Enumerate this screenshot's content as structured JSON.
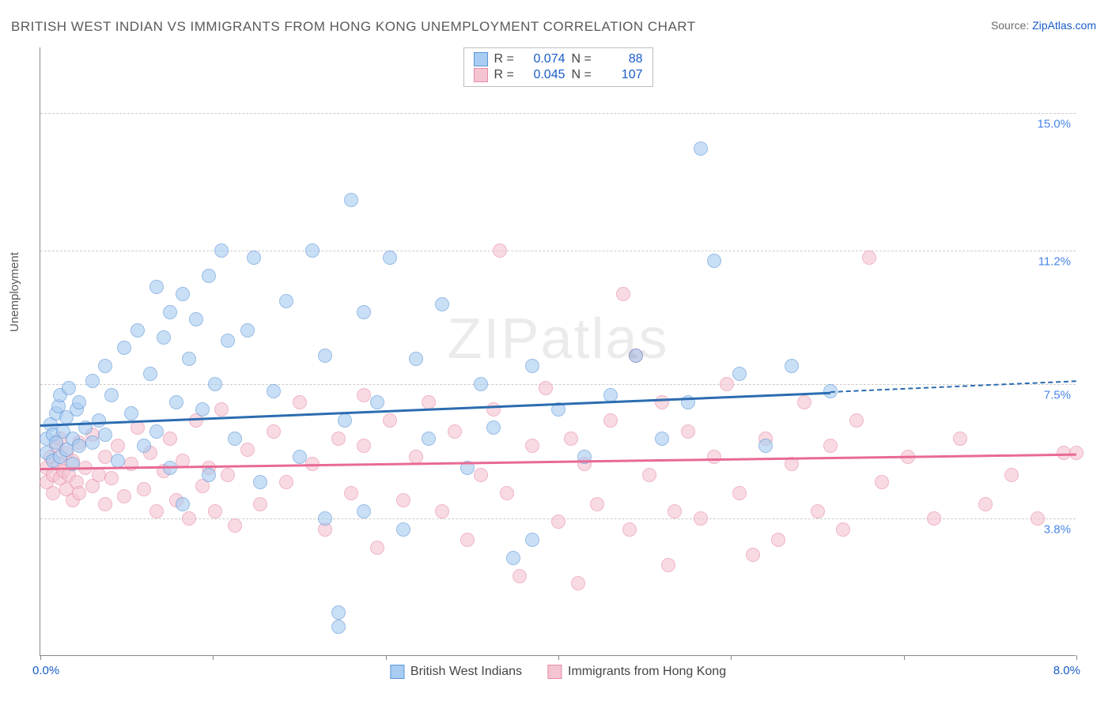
{
  "title": "BRITISH WEST INDIAN VS IMMIGRANTS FROM HONG KONG UNEMPLOYMENT CORRELATION CHART",
  "source_prefix": "Source: ",
  "source_name": "ZipAtlas.com",
  "y_axis_label": "Unemployment",
  "watermark": "ZIPatlas",
  "chart": {
    "type": "scatter",
    "xlim": [
      0.0,
      8.0
    ],
    "ylim": [
      0.0,
      16.8
    ],
    "x_ticks_minor": [
      0.0,
      1.33,
      2.67,
      4.0,
      5.33,
      6.67,
      8.0
    ],
    "y_gridlines": [
      3.8,
      7.5,
      11.2,
      15.0
    ],
    "y_tick_labels": [
      "3.8%",
      "7.5%",
      "11.2%",
      "15.0%"
    ],
    "x_tick_left": "0.0%",
    "x_tick_right": "8.0%",
    "background_color": "#ffffff",
    "grid_color": "#cccccc",
    "axis_color": "#888888",
    "marker_radius": 9,
    "marker_opacity": 0.62,
    "series": [
      {
        "name": "British West Indians",
        "fill": "#a9cdf2",
        "stroke": "#5a94d6",
        "trend_color": "#2b6cb0",
        "R": "0.074",
        "N": "88",
        "trend": {
          "x1": 0.0,
          "y1": 6.4,
          "x2": 6.1,
          "y2": 7.3,
          "dash_to_x": 8.0,
          "dash_to_y": 7.6
        },
        "points": [
          [
            0.05,
            5.6
          ],
          [
            0.05,
            6.0
          ],
          [
            0.08,
            6.4
          ],
          [
            0.1,
            6.1
          ],
          [
            0.1,
            5.4
          ],
          [
            0.12,
            6.7
          ],
          [
            0.12,
            5.9
          ],
          [
            0.14,
            6.9
          ],
          [
            0.15,
            5.5
          ],
          [
            0.15,
            7.2
          ],
          [
            0.18,
            6.2
          ],
          [
            0.2,
            6.6
          ],
          [
            0.2,
            5.7
          ],
          [
            0.22,
            7.4
          ],
          [
            0.25,
            6.0
          ],
          [
            0.25,
            5.3
          ],
          [
            0.28,
            6.8
          ],
          [
            0.3,
            7.0
          ],
          [
            0.3,
            5.8
          ],
          [
            0.35,
            6.3
          ],
          [
            0.4,
            7.6
          ],
          [
            0.4,
            5.9
          ],
          [
            0.45,
            6.5
          ],
          [
            0.5,
            8.0
          ],
          [
            0.5,
            6.1
          ],
          [
            0.55,
            7.2
          ],
          [
            0.6,
            5.4
          ],
          [
            0.65,
            8.5
          ],
          [
            0.7,
            6.7
          ],
          [
            0.75,
            9.0
          ],
          [
            0.8,
            5.8
          ],
          [
            0.85,
            7.8
          ],
          [
            0.9,
            10.2
          ],
          [
            0.9,
            6.2
          ],
          [
            0.95,
            8.8
          ],
          [
            1.0,
            9.5
          ],
          [
            1.0,
            5.2
          ],
          [
            1.05,
            7.0
          ],
          [
            1.1,
            10.0
          ],
          [
            1.1,
            4.2
          ],
          [
            1.15,
            8.2
          ],
          [
            1.2,
            9.3
          ],
          [
            1.25,
            6.8
          ],
          [
            1.3,
            10.5
          ],
          [
            1.3,
            5.0
          ],
          [
            1.35,
            7.5
          ],
          [
            1.4,
            11.2
          ],
          [
            1.45,
            8.7
          ],
          [
            1.5,
            6.0
          ],
          [
            1.6,
            9.0
          ],
          [
            1.65,
            11.0
          ],
          [
            1.7,
            4.8
          ],
          [
            1.8,
            7.3
          ],
          [
            1.9,
            9.8
          ],
          [
            2.0,
            5.5
          ],
          [
            2.1,
            11.2
          ],
          [
            2.2,
            8.3
          ],
          [
            2.2,
            3.8
          ],
          [
            2.3,
            0.8
          ],
          [
            2.3,
            1.2
          ],
          [
            2.35,
            6.5
          ],
          [
            2.4,
            12.6
          ],
          [
            2.5,
            9.5
          ],
          [
            2.5,
            4.0
          ],
          [
            2.6,
            7.0
          ],
          [
            2.7,
            11.0
          ],
          [
            2.8,
            3.5
          ],
          [
            2.9,
            8.2
          ],
          [
            3.0,
            6.0
          ],
          [
            3.1,
            9.7
          ],
          [
            3.3,
            5.2
          ],
          [
            3.4,
            7.5
          ],
          [
            3.5,
            6.3
          ],
          [
            3.65,
            2.7
          ],
          [
            3.8,
            8.0
          ],
          [
            3.8,
            3.2
          ],
          [
            4.0,
            6.8
          ],
          [
            4.2,
            5.5
          ],
          [
            4.4,
            7.2
          ],
          [
            4.6,
            8.3
          ],
          [
            4.8,
            6.0
          ],
          [
            5.0,
            7.0
          ],
          [
            5.1,
            14.0
          ],
          [
            5.2,
            10.9
          ],
          [
            5.4,
            7.8
          ],
          [
            5.6,
            5.8
          ],
          [
            5.8,
            8.0
          ],
          [
            6.1,
            7.3
          ]
        ]
      },
      {
        "name": "Immigrants from Hong Kong",
        "fill": "#f5c4d1",
        "stroke": "#e78aa6",
        "trend_color": "#e86a94",
        "R": "0.045",
        "N": "107",
        "trend": {
          "x1": 0.0,
          "y1": 5.2,
          "x2": 8.0,
          "y2": 5.6
        },
        "points": [
          [
            0.05,
            5.2
          ],
          [
            0.05,
            4.8
          ],
          [
            0.08,
            5.5
          ],
          [
            0.1,
            5.0
          ],
          [
            0.1,
            4.5
          ],
          [
            0.12,
            5.8
          ],
          [
            0.14,
            5.3
          ],
          [
            0.15,
            4.9
          ],
          [
            0.15,
            6.0
          ],
          [
            0.18,
            5.1
          ],
          [
            0.2,
            4.6
          ],
          [
            0.2,
            5.6
          ],
          [
            0.22,
            5.0
          ],
          [
            0.25,
            4.3
          ],
          [
            0.25,
            5.4
          ],
          [
            0.28,
            4.8
          ],
          [
            0.3,
            5.9
          ],
          [
            0.3,
            4.5
          ],
          [
            0.35,
            5.2
          ],
          [
            0.4,
            4.7
          ],
          [
            0.4,
            6.1
          ],
          [
            0.45,
            5.0
          ],
          [
            0.5,
            4.2
          ],
          [
            0.5,
            5.5
          ],
          [
            0.55,
            4.9
          ],
          [
            0.6,
            5.8
          ],
          [
            0.65,
            4.4
          ],
          [
            0.7,
            5.3
          ],
          [
            0.75,
            6.3
          ],
          [
            0.8,
            4.6
          ],
          [
            0.85,
            5.6
          ],
          [
            0.9,
            4.0
          ],
          [
            0.95,
            5.1
          ],
          [
            1.0,
            6.0
          ],
          [
            1.05,
            4.3
          ],
          [
            1.1,
            5.4
          ],
          [
            1.15,
            3.8
          ],
          [
            1.2,
            6.5
          ],
          [
            1.25,
            4.7
          ],
          [
            1.3,
            5.2
          ],
          [
            1.35,
            4.0
          ],
          [
            1.4,
            6.8
          ],
          [
            1.45,
            5.0
          ],
          [
            1.5,
            3.6
          ],
          [
            1.6,
            5.7
          ],
          [
            1.7,
            4.2
          ],
          [
            1.8,
            6.2
          ],
          [
            1.9,
            4.8
          ],
          [
            2.0,
            7.0
          ],
          [
            2.1,
            5.3
          ],
          [
            2.2,
            3.5
          ],
          [
            2.3,
            6.0
          ],
          [
            2.4,
            4.5
          ],
          [
            2.5,
            7.2
          ],
          [
            2.5,
            5.8
          ],
          [
            2.6,
            3.0
          ],
          [
            2.7,
            6.5
          ],
          [
            2.8,
            4.3
          ],
          [
            2.9,
            5.5
          ],
          [
            3.0,
            7.0
          ],
          [
            3.1,
            4.0
          ],
          [
            3.2,
            6.2
          ],
          [
            3.3,
            3.2
          ],
          [
            3.4,
            5.0
          ],
          [
            3.5,
            6.8
          ],
          [
            3.55,
            11.2
          ],
          [
            3.6,
            4.5
          ],
          [
            3.7,
            2.2
          ],
          [
            3.8,
            5.8
          ],
          [
            3.9,
            7.4
          ],
          [
            4.0,
            3.7
          ],
          [
            4.1,
            6.0
          ],
          [
            4.15,
            2.0
          ],
          [
            4.2,
            5.3
          ],
          [
            4.3,
            4.2
          ],
          [
            4.4,
            6.5
          ],
          [
            4.5,
            10.0
          ],
          [
            4.55,
            3.5
          ],
          [
            4.6,
            8.3
          ],
          [
            4.7,
            5.0
          ],
          [
            4.8,
            7.0
          ],
          [
            4.85,
            2.5
          ],
          [
            4.9,
            4.0
          ],
          [
            5.0,
            6.2
          ],
          [
            5.1,
            3.8
          ],
          [
            5.2,
            5.5
          ],
          [
            5.3,
            7.5
          ],
          [
            5.4,
            4.5
          ],
          [
            5.5,
            2.8
          ],
          [
            5.6,
            6.0
          ],
          [
            5.7,
            3.2
          ],
          [
            5.8,
            5.3
          ],
          [
            5.9,
            7.0
          ],
          [
            6.0,
            4.0
          ],
          [
            6.1,
            5.8
          ],
          [
            6.2,
            3.5
          ],
          [
            6.3,
            6.5
          ],
          [
            6.4,
            11.0
          ],
          [
            6.5,
            4.8
          ],
          [
            6.7,
            5.5
          ],
          [
            6.9,
            3.8
          ],
          [
            7.1,
            6.0
          ],
          [
            7.3,
            4.2
          ],
          [
            7.5,
            5.0
          ],
          [
            7.7,
            3.8
          ],
          [
            7.9,
            5.6
          ],
          [
            8.0,
            5.6
          ]
        ]
      }
    ]
  },
  "legend_top": {
    "r_label": "R =",
    "n_label": "N ="
  }
}
